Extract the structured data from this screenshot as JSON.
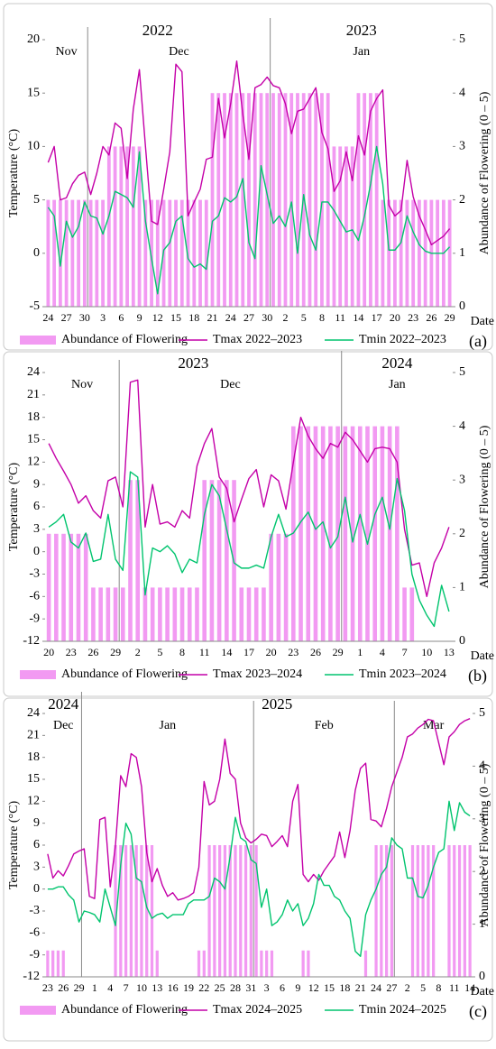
{
  "chart_data": [
    {
      "type": "combo",
      "panel_label": "(a)",
      "x_label": "Date",
      "y_label": "Temperature (°C)",
      "y2_label": "Abundance of Flowering (0 – 5)",
      "periods": [
        {
          "year": "2022",
          "months": [
            "Nov",
            "Dec"
          ]
        },
        {
          "year": "2023",
          "months": [
            "Jan"
          ]
        }
      ],
      "categories": [
        "24",
        null,
        null,
        "27",
        null,
        null,
        "30",
        null,
        null,
        "3",
        null,
        null,
        "6",
        null,
        null,
        "9",
        null,
        null,
        "12",
        null,
        null,
        "15",
        null,
        null,
        "18",
        null,
        null,
        "21",
        null,
        null,
        "24",
        null,
        null,
        "27",
        null,
        null,
        "30",
        null,
        null,
        "2",
        null,
        null,
        "5",
        null,
        null,
        "8",
        null,
        null,
        "11",
        null,
        null,
        "14",
        null,
        null,
        "17",
        null,
        null,
        "20",
        null,
        null,
        "23",
        null,
        null,
        "26",
        null,
        null,
        "29"
      ],
      "ylim": [
        -5,
        20
      ],
      "yticks": [
        -5,
        0,
        5,
        10,
        15,
        20
      ],
      "y2lim": [
        0,
        5
      ],
      "y2ticks": [
        0,
        1,
        2,
        3,
        4,
        5
      ],
      "series": [
        {
          "name": "Abundance of Flowering",
          "type": "bar",
          "axis": "y2",
          "color": "#f29af2",
          "values": [
            2,
            2,
            2,
            2,
            2,
            2,
            2,
            2,
            2,
            2,
            3,
            3,
            3,
            3,
            3,
            3,
            2,
            2,
            2,
            2,
            2,
            2,
            2,
            2,
            2,
            2,
            2,
            4,
            4,
            4,
            4,
            4,
            4,
            4,
            4,
            4,
            4,
            4,
            4,
            4,
            4,
            4,
            4,
            4,
            4,
            4,
            4,
            3,
            3,
            3,
            3,
            4,
            4,
            4,
            4,
            2,
            2,
            2,
            2,
            2,
            2,
            2,
            2,
            2,
            2,
            2,
            2
          ]
        },
        {
          "name": "Tmax 2022–2023",
          "type": "line",
          "color": "#c400a8",
          "values": [
            8.5,
            10,
            5,
            5.2,
            6.5,
            7.3,
            7.6,
            5.5,
            7.5,
            10,
            9.2,
            12.2,
            11.7,
            7,
            13.5,
            17.2,
            10,
            3,
            2.7,
            6,
            9.5,
            17.7,
            17,
            3.5,
            4.8,
            6,
            8.8,
            9,
            14.5,
            10.8,
            14,
            18,
            13,
            8.8,
            15.5,
            15.8,
            16.5,
            15.7,
            15.5,
            14,
            11.2,
            13.3,
            13.5,
            14.5,
            15.5,
            11.3,
            9.8,
            5.8,
            6.8,
            9.5,
            6.8,
            11,
            9.2,
            13.3,
            14.5,
            15.3,
            4.5,
            3.5,
            4,
            8.7,
            5.3,
            3.5,
            2.2,
            0.8,
            1.2,
            1.6,
            2.3
          ]
        },
        {
          "name": "Tmin 2022–2023",
          "type": "line",
          "color": "#00c46e",
          "values": [
            4.3,
            3.5,
            -1.2,
            3,
            1.5,
            2.5,
            4.8,
            3.5,
            3.3,
            1.8,
            3.5,
            5.8,
            5.5,
            5.2,
            4.3,
            9.5,
            3,
            -0.5,
            -3.8,
            0.3,
            1,
            3,
            3.5,
            -0.5,
            -1.3,
            -1,
            -1.5,
            3,
            3.5,
            5.2,
            4.8,
            5.3,
            7,
            1,
            -0.5,
            8.2,
            5.5,
            2.8,
            3.5,
            2.5,
            4.8,
            0,
            5.5,
            1.7,
            0.3,
            4.8,
            4.8,
            4,
            3,
            2,
            2.2,
            1.2,
            3.5,
            6.5,
            10,
            6.5,
            0.3,
            0.3,
            1,
            3.5,
            2,
            0.8,
            0.2,
            0,
            0,
            0,
            0.6
          ]
        }
      ]
    },
    {
      "type": "combo",
      "panel_label": "(b)",
      "x_label": "Date",
      "y_label": "Temperature (°C)",
      "y2_label": "Abundance of Flowering (0 – 5)",
      "periods": [
        {
          "year": "2023",
          "months": [
            "Nov",
            "Dec"
          ]
        },
        {
          "year": "2024",
          "months": [
            "Jan"
          ]
        }
      ],
      "categories": [
        "20",
        null,
        null,
        "23",
        null,
        null,
        "26",
        null,
        null,
        "29",
        null,
        null,
        "2",
        null,
        null,
        "5",
        null,
        null,
        "8",
        null,
        null,
        "11",
        null,
        null,
        "14",
        null,
        null,
        "17",
        null,
        null,
        "20",
        null,
        null,
        "23",
        null,
        null,
        "26",
        null,
        null,
        "29",
        null,
        null,
        "1",
        null,
        null,
        "4",
        null,
        null,
        "7",
        null,
        null,
        "10",
        null,
        null,
        "13"
      ],
      "ylim": [
        -12,
        24
      ],
      "yticks": [
        -12,
        -9,
        -6,
        -3,
        0,
        3,
        6,
        9,
        12,
        15,
        18,
        21,
        24
      ],
      "y2lim": [
        0,
        5
      ],
      "y2ticks": [
        0,
        1,
        2,
        3,
        4,
        5
      ],
      "series": [
        {
          "name": "Abundance of Flowering",
          "type": "bar",
          "axis": "y2",
          "color": "#f29af2",
          "values": [
            2,
            2,
            2,
            2,
            2,
            2,
            1,
            1,
            1,
            1,
            1,
            3,
            3,
            1,
            1,
            1,
            1,
            1,
            1,
            1,
            1,
            3,
            3,
            3,
            3,
            3,
            1,
            1,
            1,
            1,
            2,
            2,
            2,
            4,
            4,
            4,
            4,
            4,
            4,
            4,
            4,
            4,
            4,
            4,
            4,
            4,
            4,
            4,
            1,
            1,
            0,
            0,
            0,
            0,
            0
          ]
        },
        {
          "name": "Tmax 2023–2024",
          "type": "line",
          "color": "#c400a8",
          "values": [
            14.5,
            12.5,
            10.8,
            9,
            6.5,
            7.5,
            5.5,
            4.5,
            9.5,
            10,
            6,
            22.7,
            23,
            3.3,
            9,
            3.7,
            4,
            3.3,
            5.5,
            4.5,
            11.5,
            14.5,
            16.5,
            10,
            8.5,
            4,
            7,
            9.8,
            11,
            6,
            10.3,
            9.5,
            5.7,
            12,
            18,
            15.5,
            13.8,
            12.5,
            14.5,
            14,
            16,
            15,
            13.5,
            12,
            13.8,
            14,
            13.8,
            12,
            3,
            -1.8,
            -1.5,
            -6,
            -1.5,
            0.5,
            3.3
          ]
        },
        {
          "name": "Tmin 2023–2024",
          "type": "line",
          "color": "#00c46e",
          "values": [
            3.3,
            4,
            5,
            1.3,
            0.5,
            2.5,
            -1.3,
            -1,
            5,
            -1,
            -2.5,
            10.7,
            10,
            -5.8,
            0.5,
            0,
            0.8,
            -0.3,
            -2.8,
            -1,
            -1.5,
            5,
            9,
            7.5,
            3,
            -1.5,
            -2.2,
            -2.2,
            -1.8,
            -2.2,
            2,
            5,
            2,
            2.5,
            4,
            5.3,
            3,
            4,
            0.5,
            2,
            7.3,
            1.3,
            5,
            1,
            5,
            7.3,
            3,
            9.8,
            5.5,
            -3,
            -6.5,
            -8.5,
            -10,
            -4.5,
            -8
          ]
        }
      ]
    },
    {
      "type": "combo",
      "panel_label": "(c)",
      "x_label": "Date",
      "y_label": "Temperature (°C)",
      "y2_label": "Abundance of Flowering (0 – 5)",
      "periods": [
        {
          "year": "2024",
          "months": [
            "Dec"
          ]
        },
        {
          "year": "2025",
          "months": [
            "Jan",
            "Feb",
            "Mar"
          ]
        }
      ],
      "categories": [
        "23",
        null,
        null,
        "26",
        null,
        null,
        "29",
        null,
        null,
        "1",
        null,
        null,
        "4",
        null,
        null,
        "7",
        null,
        null,
        "10",
        null,
        null,
        "13",
        null,
        null,
        "16",
        null,
        null,
        "19",
        null,
        null,
        "22",
        null,
        null,
        "25",
        null,
        null,
        "28",
        null,
        null,
        "31",
        null,
        null,
        "3",
        null,
        null,
        "6",
        null,
        null,
        "9",
        null,
        null,
        "12",
        null,
        null,
        "15",
        null,
        null,
        "18",
        null,
        null,
        "21",
        null,
        null,
        "24",
        null,
        null,
        "27",
        null,
        null,
        "2",
        null,
        null,
        "5",
        null,
        null,
        "8",
        null,
        null,
        "11",
        null,
        null,
        "14"
      ],
      "ylim": [
        -12,
        24
      ],
      "yticks": [
        -12,
        -9,
        -6,
        -3,
        0,
        3,
        6,
        9,
        12,
        15,
        18,
        21,
        24
      ],
      "y2lim": [
        0,
        5
      ],
      "y2ticks": [
        0,
        1,
        2,
        3,
        4,
        5
      ],
      "series": [
        {
          "name": "Abundance of Flowering",
          "type": "bar",
          "axis": "y2",
          "color": "#f29af2",
          "values": [
            0.5,
            0.5,
            0.5,
            0.5,
            0,
            0,
            0,
            0,
            0,
            0,
            0,
            0,
            0,
            2.5,
            2.5,
            2.5,
            2.5,
            2.5,
            2.5,
            2.5,
            2.5,
            0.5,
            0,
            0,
            0,
            0,
            0,
            0,
            0,
            0.5,
            0.5,
            2.5,
            2.5,
            2.5,
            2.5,
            2.5,
            2.5,
            2.5,
            2.5,
            2.5,
            2.5,
            0.5,
            0.5,
            0.5,
            0,
            0,
            0,
            0,
            0,
            0.5,
            0.5,
            0,
            0,
            0,
            0,
            0,
            0,
            0,
            0,
            0,
            0,
            0.5,
            0,
            2.5,
            2.5,
            2.5,
            2.5,
            0,
            0,
            0,
            2.5,
            2.5,
            2.5,
            2.5,
            2.5,
            0,
            0,
            2.5,
            2.5,
            2.5,
            2.5,
            2.5
          ]
        },
        {
          "name": "Tmax 2024–2025",
          "type": "line",
          "color": "#c400a8",
          "values": [
            4.8,
            1.5,
            2.5,
            1.8,
            3.2,
            4.8,
            5.2,
            5.5,
            -1,
            -1.3,
            9.5,
            9.8,
            0.3,
            6,
            15.5,
            14,
            18.5,
            18,
            14,
            5,
            1,
            2.8,
            0.5,
            -1,
            -0.5,
            -1.5,
            -1.3,
            -1,
            -0.5,
            3,
            14.7,
            11.5,
            12,
            15,
            20.5,
            15.8,
            15,
            9,
            7,
            6.3,
            6.8,
            7.5,
            7.3,
            5.8,
            6.5,
            7.3,
            5.8,
            12,
            14.3,
            2,
            1,
            2,
            1.2,
            2.5,
            3.5,
            4.5,
            7.8,
            4.3,
            8,
            13.5,
            16.5,
            17.2,
            9.5,
            9.3,
            8.5,
            11,
            14,
            16,
            18,
            20.8,
            21.2,
            22,
            22.5,
            23.2,
            23,
            20,
            17,
            20.8,
            21.5,
            22.5,
            23,
            23.3
          ]
        },
        {
          "name": "Tmin 2024–2025",
          "type": "line",
          "color": "#00c46e",
          "values": [
            0,
            0,
            0.3,
            0.3,
            -0.8,
            -1.5,
            -4.5,
            -3,
            -3.2,
            -3.5,
            -4.5,
            0,
            -2.5,
            -5,
            3.3,
            9,
            7.5,
            1.5,
            1,
            -2.5,
            -4,
            -3.5,
            -3.3,
            -4,
            -3.5,
            -3.5,
            -3.5,
            -2,
            -1.5,
            -1.5,
            -1.5,
            -1,
            1.5,
            1,
            0,
            4.5,
            9.8,
            7,
            6.5,
            4,
            3.5,
            -2.5,
            0,
            -5,
            -4.5,
            -3.5,
            -1.5,
            -3,
            -2,
            -5,
            -4,
            -2,
            2,
            0.5,
            0.5,
            -1,
            -1.5,
            -3,
            -4,
            -8.5,
            -9.2,
            -3.5,
            -1.5,
            0,
            2,
            3,
            7,
            6,
            5.5,
            1.5,
            1.5,
            -1,
            -1.2,
            0.5,
            3,
            5,
            5.5,
            12,
            8,
            11.8,
            10.5,
            10
          ]
        }
      ]
    }
  ]
}
